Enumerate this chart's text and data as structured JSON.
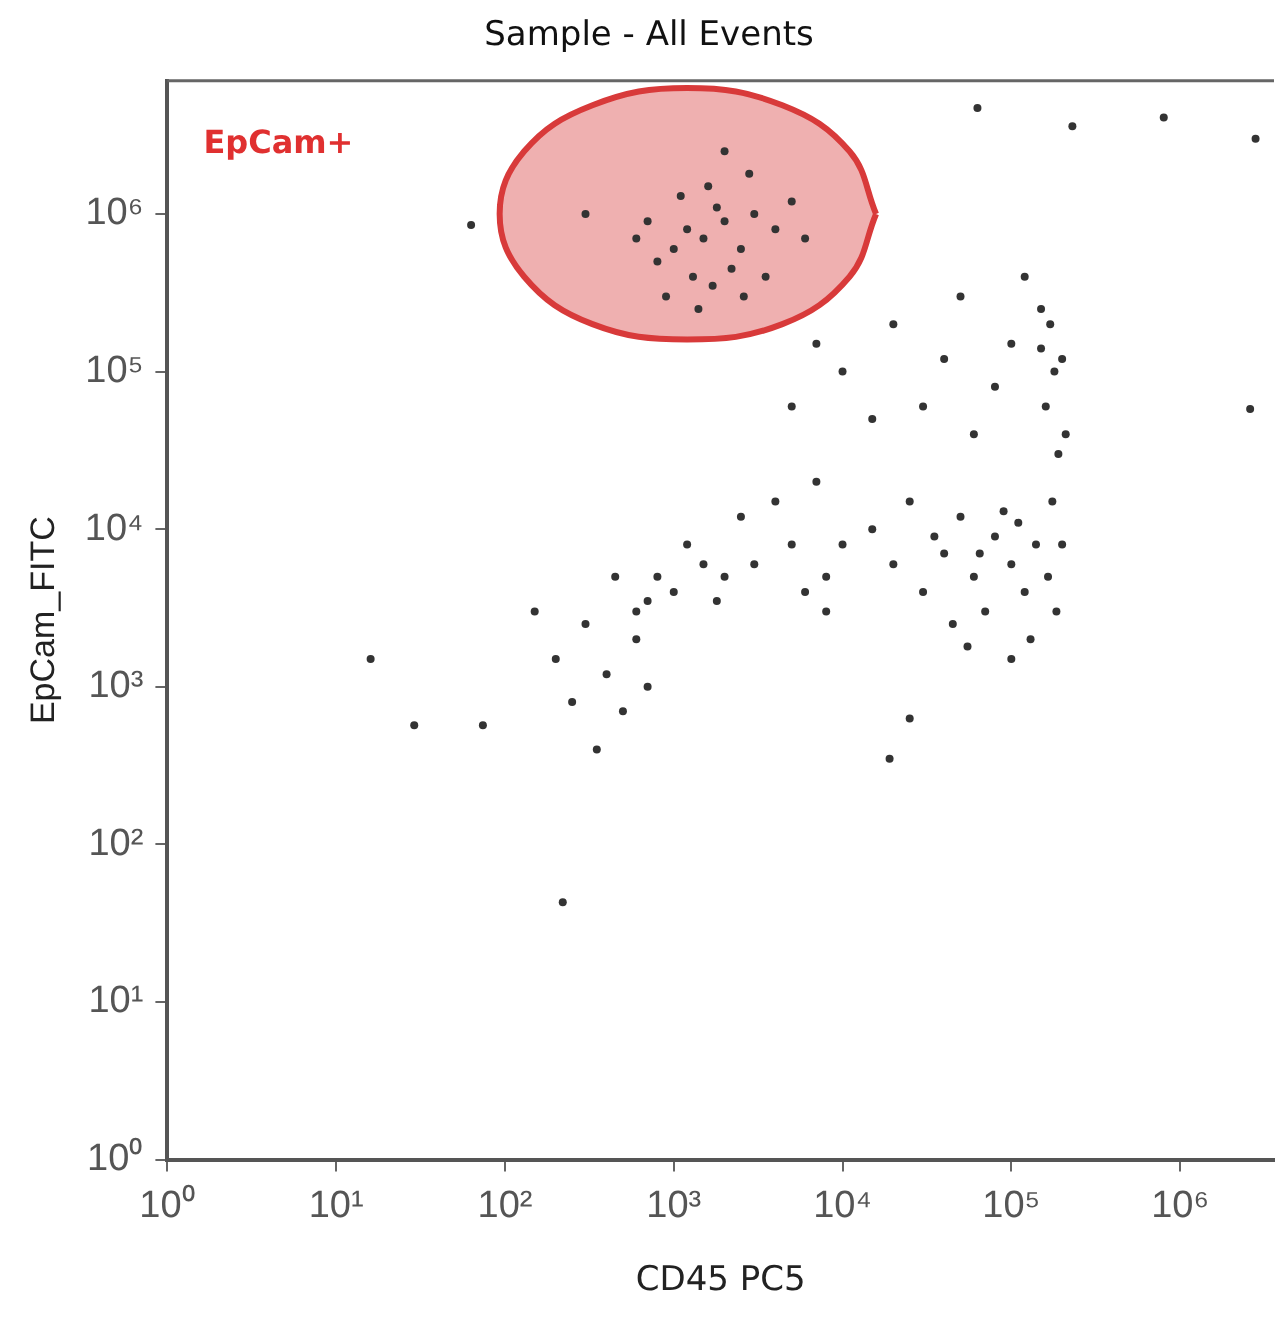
{
  "chart_data": {
    "type": "scatter",
    "title": "Sample - All Events",
    "xlabel": "CD45 PC5",
    "ylabel": "EpCam_FITC",
    "annotations": [
      "EpCam+"
    ],
    "log": "xy",
    "grid": false,
    "legend": false,
    "xlim": [
      1,
      3600000
    ],
    "ylim": [
      1,
      7000000
    ],
    "xticks": [
      {
        "value": 1,
        "label": "10⁰"
      },
      {
        "value": 10,
        "label": "10¹"
      },
      {
        "value": 100,
        "label": "10²"
      },
      {
        "value": 1000,
        "label": "10³"
      },
      {
        "value": 10000,
        "label": "10⁴"
      },
      {
        "value": 100000,
        "label": "10⁵"
      },
      {
        "value": 1000000,
        "label": "10⁶"
      }
    ],
    "yticks": [
      {
        "value": 1,
        "label": "10⁰"
      },
      {
        "value": 10,
        "label": "10¹"
      },
      {
        "value": 100,
        "label": "10²"
      },
      {
        "value": 1000,
        "label": "10³"
      },
      {
        "value": 10000,
        "label": "10⁴"
      },
      {
        "value": 100000,
        "label": "10⁵"
      },
      {
        "value": 1000000,
        "label": "10⁶"
      }
    ],
    "series": [
      {
        "type": "area",
        "color": "#d83a3a",
        "x": [
          15800,
          11000,
          4400,
          1200,
          330,
          130,
          93,
          130,
          330,
          1200,
          4400,
          11000,
          15800
        ],
        "values": [
          1000000,
          2500000,
          4900000,
          6300000,
          4900000,
          2500000,
          1000000,
          400000,
          200000,
          160000,
          200000,
          400000,
          1000000
        ]
      },
      {
        "color": "#333333",
        "marker": "circle",
        "x": [
          1200,
          1500,
          2000,
          1000,
          2500,
          1800,
          3000,
          800,
          1300,
          2200,
          700,
          4000,
          1600,
          2800,
          900,
          3500,
          1100,
          2000,
          600,
          5000,
          1400,
          2600,
          300,
          1700,
          6000,
          20000,
          50000,
          100000,
          80000,
          30000,
          150000,
          40000,
          120000,
          10000,
          60000,
          200000,
          15000,
          7000,
          5000,
          63000,
          800000,
          230000,
          2800000,
          2600000,
          63,
          170000,
          180000,
          160000,
          190000,
          175000,
          200000,
          165000,
          185000,
          150000,
          210000,
          10000,
          20000,
          40000,
          60000,
          80000,
          30000,
          100000,
          50000,
          15000,
          120000,
          70000,
          25000,
          90000,
          140000,
          45000,
          8000,
          35000,
          110000,
          65000,
          130000,
          100000,
          55000,
          3000,
          5000,
          4000,
          6000,
          7000,
          2500,
          8000,
          800,
          1000,
          1500,
          2000,
          700,
          1200,
          600,
          1800,
          200,
          300,
          400,
          500,
          250,
          600,
          350,
          450,
          700,
          150,
          16,
          29,
          74,
          220,
          19000,
          25000
        ],
        "values": [
          800000,
          700000,
          900000,
          600000,
          600000,
          1100000,
          1000000,
          500000,
          400000,
          450000,
          900000,
          800000,
          1500000,
          1800000,
          300000,
          400000,
          1300000,
          2500000,
          700000,
          1200000,
          250000,
          300000,
          1000000,
          350000,
          700000,
          200000,
          300000,
          150000,
          80000,
          60000,
          250000,
          120000,
          400000,
          100000,
          40000,
          120000,
          50000,
          150000,
          60000,
          4700000,
          4100000,
          3600000,
          3000000,
          58000,
          850000,
          200000,
          100000,
          60000,
          30000,
          15000,
          8000,
          5000,
          3000,
          140000,
          40000,
          8000,
          6000,
          7000,
          5000,
          9000,
          4000,
          6000,
          12000,
          10000,
          4000,
          3000,
          15000,
          13000,
          8000,
          2500,
          5000,
          9000,
          11000,
          7000,
          2000,
          1500,
          1800,
          6000,
          8000,
          15000,
          4000,
          20000,
          12000,
          3000,
          5000,
          4000,
          6000,
          5000,
          3500,
          8000,
          3000,
          3500,
          1500,
          2500,
          1200,
          700,
          800,
          2000,
          400,
          5000,
          1000,
          3000,
          1500,
          570,
          570,
          43,
          350,
          630
        ]
      }
    ]
  }
}
